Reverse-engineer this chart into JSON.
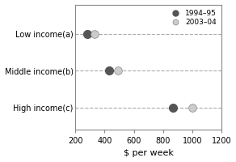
{
  "categories": [
    "Low income(a)",
    "Middle income(b)",
    "High income(c)"
  ],
  "values_1994": [
    280,
    430,
    870
  ],
  "values_2003": [
    330,
    490,
    1000
  ],
  "color_1994": "#555555",
  "color_2003": "#cccccc",
  "xlabel": "$ per week",
  "xlim": [
    200,
    1200
  ],
  "xticks": [
    200,
    400,
    600,
    800,
    1000,
    1200
  ],
  "legend_labels": [
    "1994–95",
    "2003–04"
  ],
  "marker_size": 7,
  "dashed_color": "#aaaaaa",
  "background_color": "#ffffff"
}
